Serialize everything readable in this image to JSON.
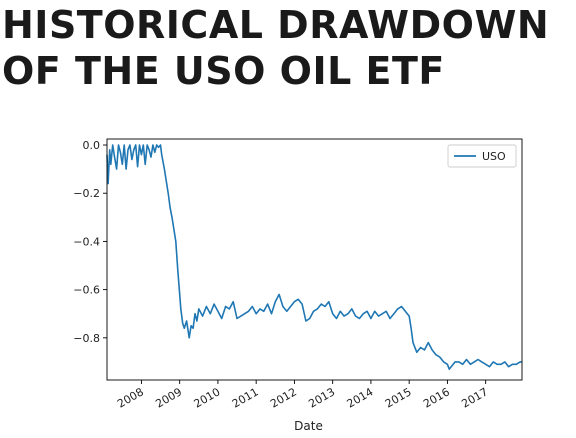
{
  "header": {
    "title_line1": "HISTORICAL DRAWDOWN",
    "title_line2": "OF THE USO OIL ETF"
  },
  "chart_data": {
    "type": "line",
    "title": "HISTORICAL DRAWDOWN OF THE USO OIL ETF",
    "xlabel": "Date",
    "ylabel": "",
    "xlim": [
      2007.1,
      2017.95
    ],
    "ylim": [
      -0.975,
      0.025
    ],
    "x_ticks": [
      2008,
      2009,
      2010,
      2011,
      2012,
      2013,
      2014,
      2015,
      2016,
      2017
    ],
    "x_tick_labels": [
      "2008",
      "2009",
      "2010",
      "2011",
      "2012",
      "2013",
      "2014",
      "2015",
      "2016",
      "2017"
    ],
    "y_ticks": [
      0.0,
      -0.2,
      -0.4,
      -0.6,
      -0.8
    ],
    "y_tick_labels": [
      "0.0",
      "−0.2",
      "−0.4",
      "−0.6",
      "−0.8"
    ],
    "grid": false,
    "legend": "top-right",
    "series": [
      {
        "name": "USO",
        "color": "#1f77b4",
        "x": [
          2007.1,
          2007.13,
          2007.17,
          2007.2,
          2007.25,
          2007.3,
          2007.35,
          2007.4,
          2007.45,
          2007.5,
          2007.55,
          2007.6,
          2007.65,
          2007.7,
          2007.75,
          2007.8,
          2007.85,
          2007.9,
          2007.95,
          2008.0,
          2008.05,
          2008.1,
          2008.15,
          2008.2,
          2008.25,
          2008.3,
          2008.35,
          2008.4,
          2008.45,
          2008.5,
          2008.53,
          2008.6,
          2008.65,
          2008.7,
          2008.75,
          2008.8,
          2008.85,
          2008.9,
          2008.95,
          2009.0,
          2009.03,
          2009.08,
          2009.12,
          2009.18,
          2009.25,
          2009.3,
          2009.35,
          2009.4,
          2009.45,
          2009.5,
          2009.6,
          2009.7,
          2009.8,
          2009.9,
          2010.0,
          2010.1,
          2010.2,
          2010.3,
          2010.4,
          2010.5,
          2010.6,
          2010.7,
          2010.8,
          2010.9,
          2011.0,
          2011.1,
          2011.2,
          2011.3,
          2011.4,
          2011.5,
          2011.6,
          2011.7,
          2011.8,
          2011.9,
          2012.0,
          2012.1,
          2012.2,
          2012.3,
          2012.4,
          2012.5,
          2012.6,
          2012.7,
          2012.8,
          2012.9,
          2013.0,
          2013.1,
          2013.2,
          2013.3,
          2013.4,
          2013.5,
          2013.6,
          2013.7,
          2013.8,
          2013.9,
          2014.0,
          2014.1,
          2014.2,
          2014.3,
          2014.4,
          2014.5,
          2014.6,
          2014.7,
          2014.8,
          2014.9,
          2015.0,
          2015.05,
          2015.1,
          2015.2,
          2015.3,
          2015.4,
          2015.5,
          2015.6,
          2015.7,
          2015.8,
          2015.9,
          2016.0,
          2016.05,
          2016.1,
          2016.2,
          2016.3,
          2016.4,
          2016.5,
          2016.6,
          2016.7,
          2016.8,
          2016.9,
          2017.0,
          2017.1,
          2017.2,
          2017.3,
          2017.4,
          2017.5,
          2017.6,
          2017.7,
          2017.8,
          2017.9,
          2017.95
        ],
        "values": [
          -0.04,
          -0.16,
          -0.02,
          -0.08,
          0.0,
          -0.05,
          -0.1,
          0.0,
          -0.03,
          -0.08,
          0.0,
          -0.1,
          -0.02,
          0.0,
          -0.06,
          -0.02,
          0.0,
          -0.09,
          0.0,
          -0.04,
          0.0,
          -0.08,
          0.0,
          -0.02,
          -0.05,
          0.0,
          -0.03,
          0.0,
          -0.01,
          0.0,
          -0.04,
          -0.1,
          -0.15,
          -0.2,
          -0.26,
          -0.3,
          -0.35,
          -0.4,
          -0.52,
          -0.62,
          -0.68,
          -0.74,
          -0.76,
          -0.73,
          -0.8,
          -0.75,
          -0.76,
          -0.7,
          -0.73,
          -0.68,
          -0.71,
          -0.67,
          -0.7,
          -0.66,
          -0.69,
          -0.72,
          -0.67,
          -0.68,
          -0.65,
          -0.72,
          -0.71,
          -0.7,
          -0.69,
          -0.67,
          -0.7,
          -0.68,
          -0.69,
          -0.66,
          -0.7,
          -0.65,
          -0.62,
          -0.67,
          -0.69,
          -0.67,
          -0.65,
          -0.64,
          -0.66,
          -0.73,
          -0.72,
          -0.69,
          -0.68,
          -0.66,
          -0.67,
          -0.65,
          -0.7,
          -0.72,
          -0.69,
          -0.71,
          -0.7,
          -0.68,
          -0.71,
          -0.72,
          -0.7,
          -0.69,
          -0.72,
          -0.69,
          -0.71,
          -0.7,
          -0.69,
          -0.72,
          -0.7,
          -0.68,
          -0.67,
          -0.69,
          -0.71,
          -0.76,
          -0.82,
          -0.86,
          -0.84,
          -0.85,
          -0.82,
          -0.85,
          -0.87,
          -0.88,
          -0.9,
          -0.91,
          -0.93,
          -0.92,
          -0.9,
          -0.9,
          -0.91,
          -0.89,
          -0.91,
          -0.9,
          -0.89,
          -0.9,
          -0.91,
          -0.92,
          -0.9,
          -0.91,
          -0.91,
          -0.9,
          -0.92,
          -0.91,
          -0.91,
          -0.9,
          -0.9
        ]
      }
    ]
  }
}
